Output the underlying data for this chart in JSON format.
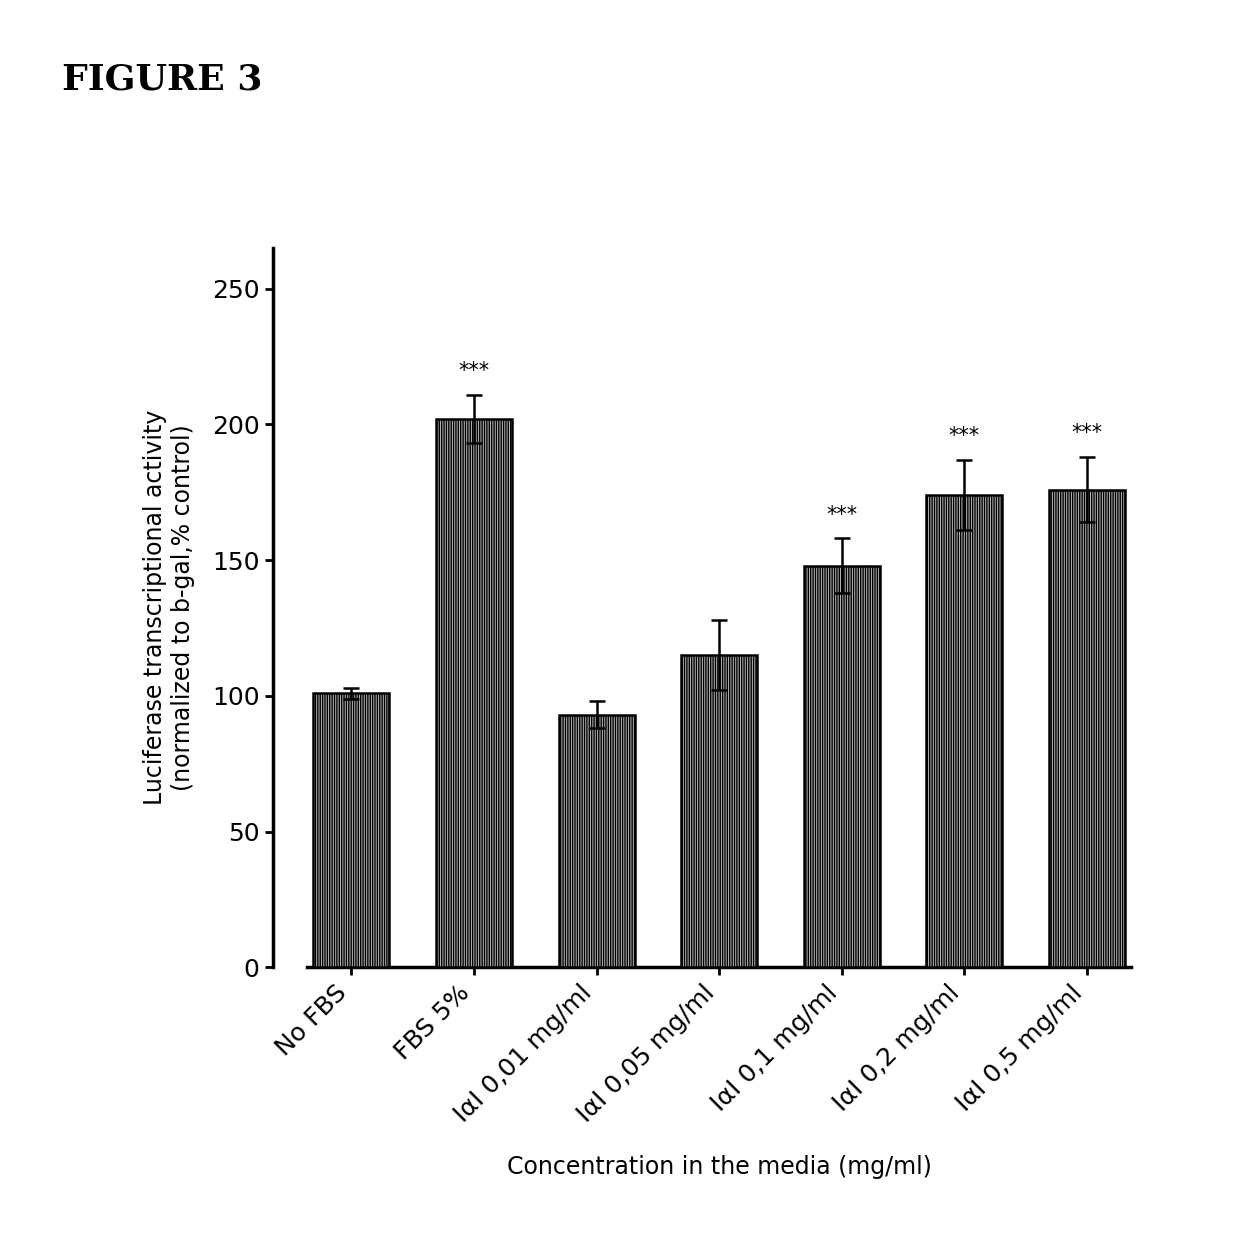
{
  "categories": [
    "No FBS",
    "FBS 5%",
    "IαI 0,01 mg/ml",
    "IαI 0,05 mg/ml",
    "IαI 0,1 mg/ml",
    "IαI 0,2 mg/ml",
    "IαI 0,5 mg/ml"
  ],
  "values": [
    101,
    202,
    93,
    115,
    148,
    174,
    176
  ],
  "errors": [
    2,
    9,
    5,
    13,
    10,
    13,
    12
  ],
  "significance": [
    false,
    true,
    false,
    false,
    true,
    true,
    true
  ],
  "bar_color": "#b8b8b8",
  "bar_edge_color": "#000000",
  "bar_width": 0.62,
  "title": "FIGURE 3",
  "ylabel_line1": "Luciferase transcriptional activity",
  "ylabel_line2": "(normalized to b-gal,% control)",
  "xlabel": "Concentration in the media (mg/ml)",
  "ylim": [
    0,
    265
  ],
  "yticks": [
    0,
    50,
    100,
    150,
    200,
    250
  ],
  "significance_label": "***",
  "significance_fontsize": 15,
  "axis_linewidth": 2.5,
  "bar_linewidth": 1.8,
  "error_capsize": 6,
  "error_linewidth": 1.8,
  "background_color": "#ffffff",
  "tick_fontsize": 18,
  "label_fontsize": 17,
  "title_fontsize": 26,
  "hatch": "|||||||"
}
